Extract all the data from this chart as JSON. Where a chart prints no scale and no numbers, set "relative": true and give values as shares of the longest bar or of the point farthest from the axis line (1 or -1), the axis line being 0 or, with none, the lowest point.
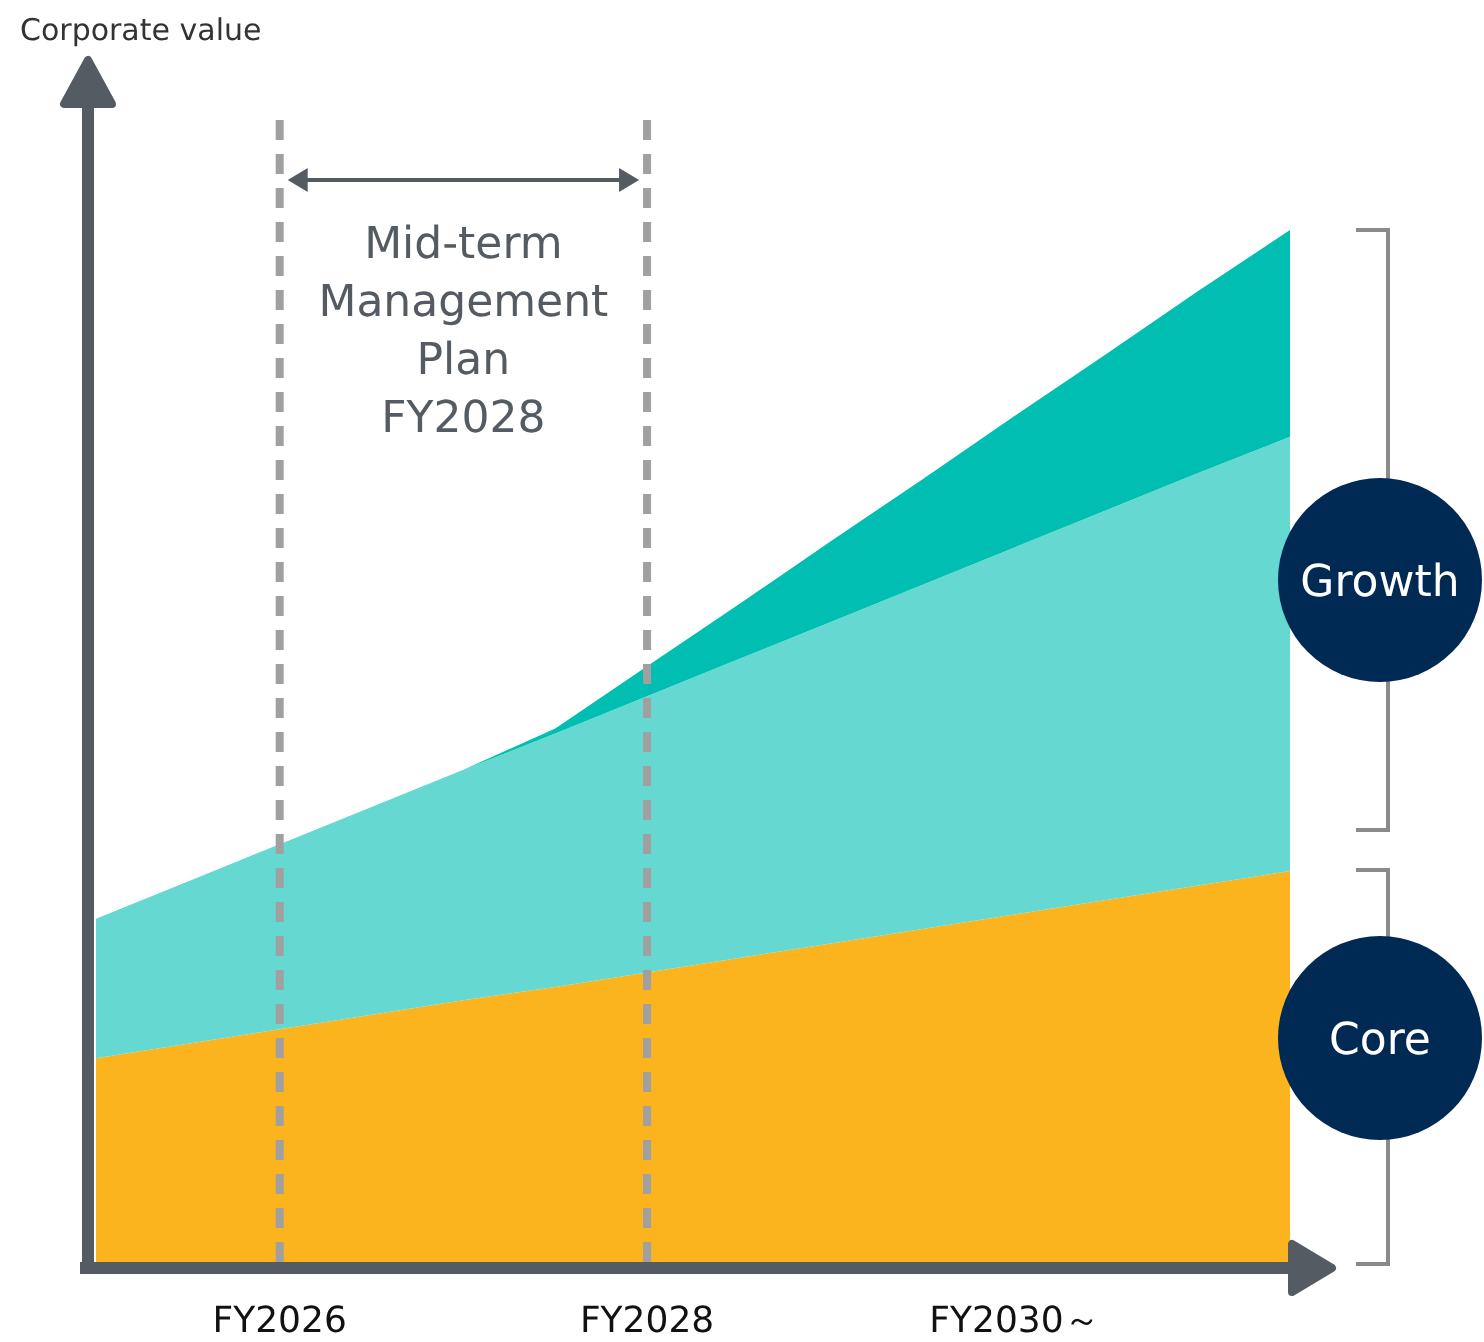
{
  "chart_data": {
    "type": "area",
    "stacked": true,
    "relative": true,
    "categories": [
      null,
      null,
      "FY2026",
      null,
      null,
      null,
      "FY2028",
      null,
      null,
      null,
      "FY2030～",
      null,
      null,
      null
    ],
    "series": [
      {
        "color": "#fbb41e",
        "values": [
          0.199,
          0.213,
          0.227,
          0.241,
          0.255,
          0.268,
          0.282,
          0.296,
          0.31,
          0.324,
          0.338,
          0.352,
          0.366,
          0.38
        ]
      },
      {
        "color": "#66d8d2",
        "values": [
          0.135,
          0.157,
          0.179,
          0.201,
          0.223,
          0.245,
          0.267,
          0.289,
          0.311,
          0.333,
          0.355,
          0.377,
          0.399,
          0.42
        ]
      },
      {
        "color": "#00bfb2",
        "values": [
          0,
          0,
          0,
          0,
          0,
          0.005,
          0.029,
          0.053,
          0.078,
          0.102,
          0.127,
          0.151,
          0.176,
          0.2
        ]
      }
    ],
    "ref_lines": [
      {
        "axis": "x",
        "value": "FY2026",
        "color": "#a0a0a0",
        "line_style": "dashed"
      },
      {
        "axis": "x",
        "value": "FY2028",
        "color": "#a0a0a0",
        "line_style": "dashed"
      }
    ],
    "annotations": [
      "Corporate value",
      "Mid-term\nManagement\nPlan\nFY2028",
      "Growth",
      "Core"
    ]
  }
}
